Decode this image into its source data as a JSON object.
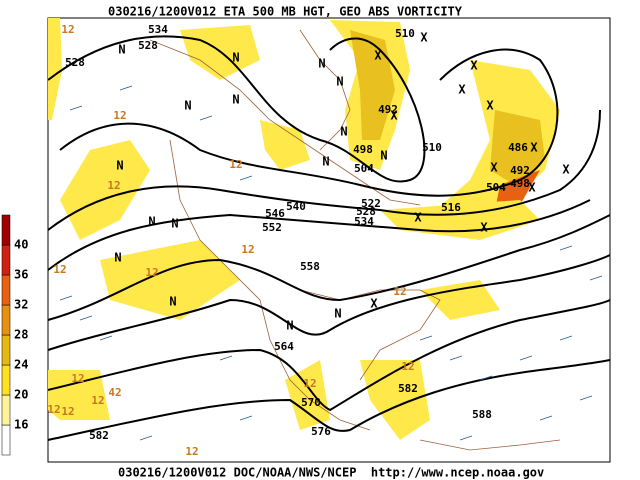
{
  "header": {
    "title": "030216/1200V012 ETA 500 MB HGT, GEO ABS VORTICITY"
  },
  "footer": {
    "text": "030216/1200V012 DOC/NOAA/NWS/NCEP  http://www.ncep.noaa.gov"
  },
  "colorbar": {
    "bounds": [
      12,
      16,
      20,
      24,
      28,
      32,
      36,
      40,
      44
    ],
    "ticks": [
      16,
      20,
      24,
      28,
      32,
      36,
      40
    ],
    "colors": [
      "#ffffff",
      "#fff49a",
      "#ffe020",
      "#e8b810",
      "#e89010",
      "#e86010",
      "#d02010",
      "#a00000"
    ]
  },
  "height_labels": [
    "528",
    "528",
    "534",
    "510",
    "492",
    "498",
    "504",
    "510",
    "486",
    "492",
    "498",
    "504",
    "522",
    "528",
    "534",
    "516",
    "540",
    "546",
    "552",
    "558",
    "564",
    "570",
    "576",
    "582",
    "588",
    "582"
  ],
  "vorticity_labels": [
    "12",
    "12",
    "12",
    "12",
    "12",
    "12",
    "12",
    "12",
    "12",
    "12",
    "12",
    "12",
    "12",
    "42",
    "12",
    "12"
  ],
  "symbols": [
    "N",
    "N",
    "N",
    "N",
    "N",
    "N",
    "N",
    "N",
    "N",
    "N",
    "N",
    "N",
    "N",
    "N",
    "N",
    "N",
    "X",
    "X",
    "X",
    "X",
    "X",
    "X",
    "X",
    "X",
    "X",
    "X",
    "X",
    "X",
    "X"
  ]
}
